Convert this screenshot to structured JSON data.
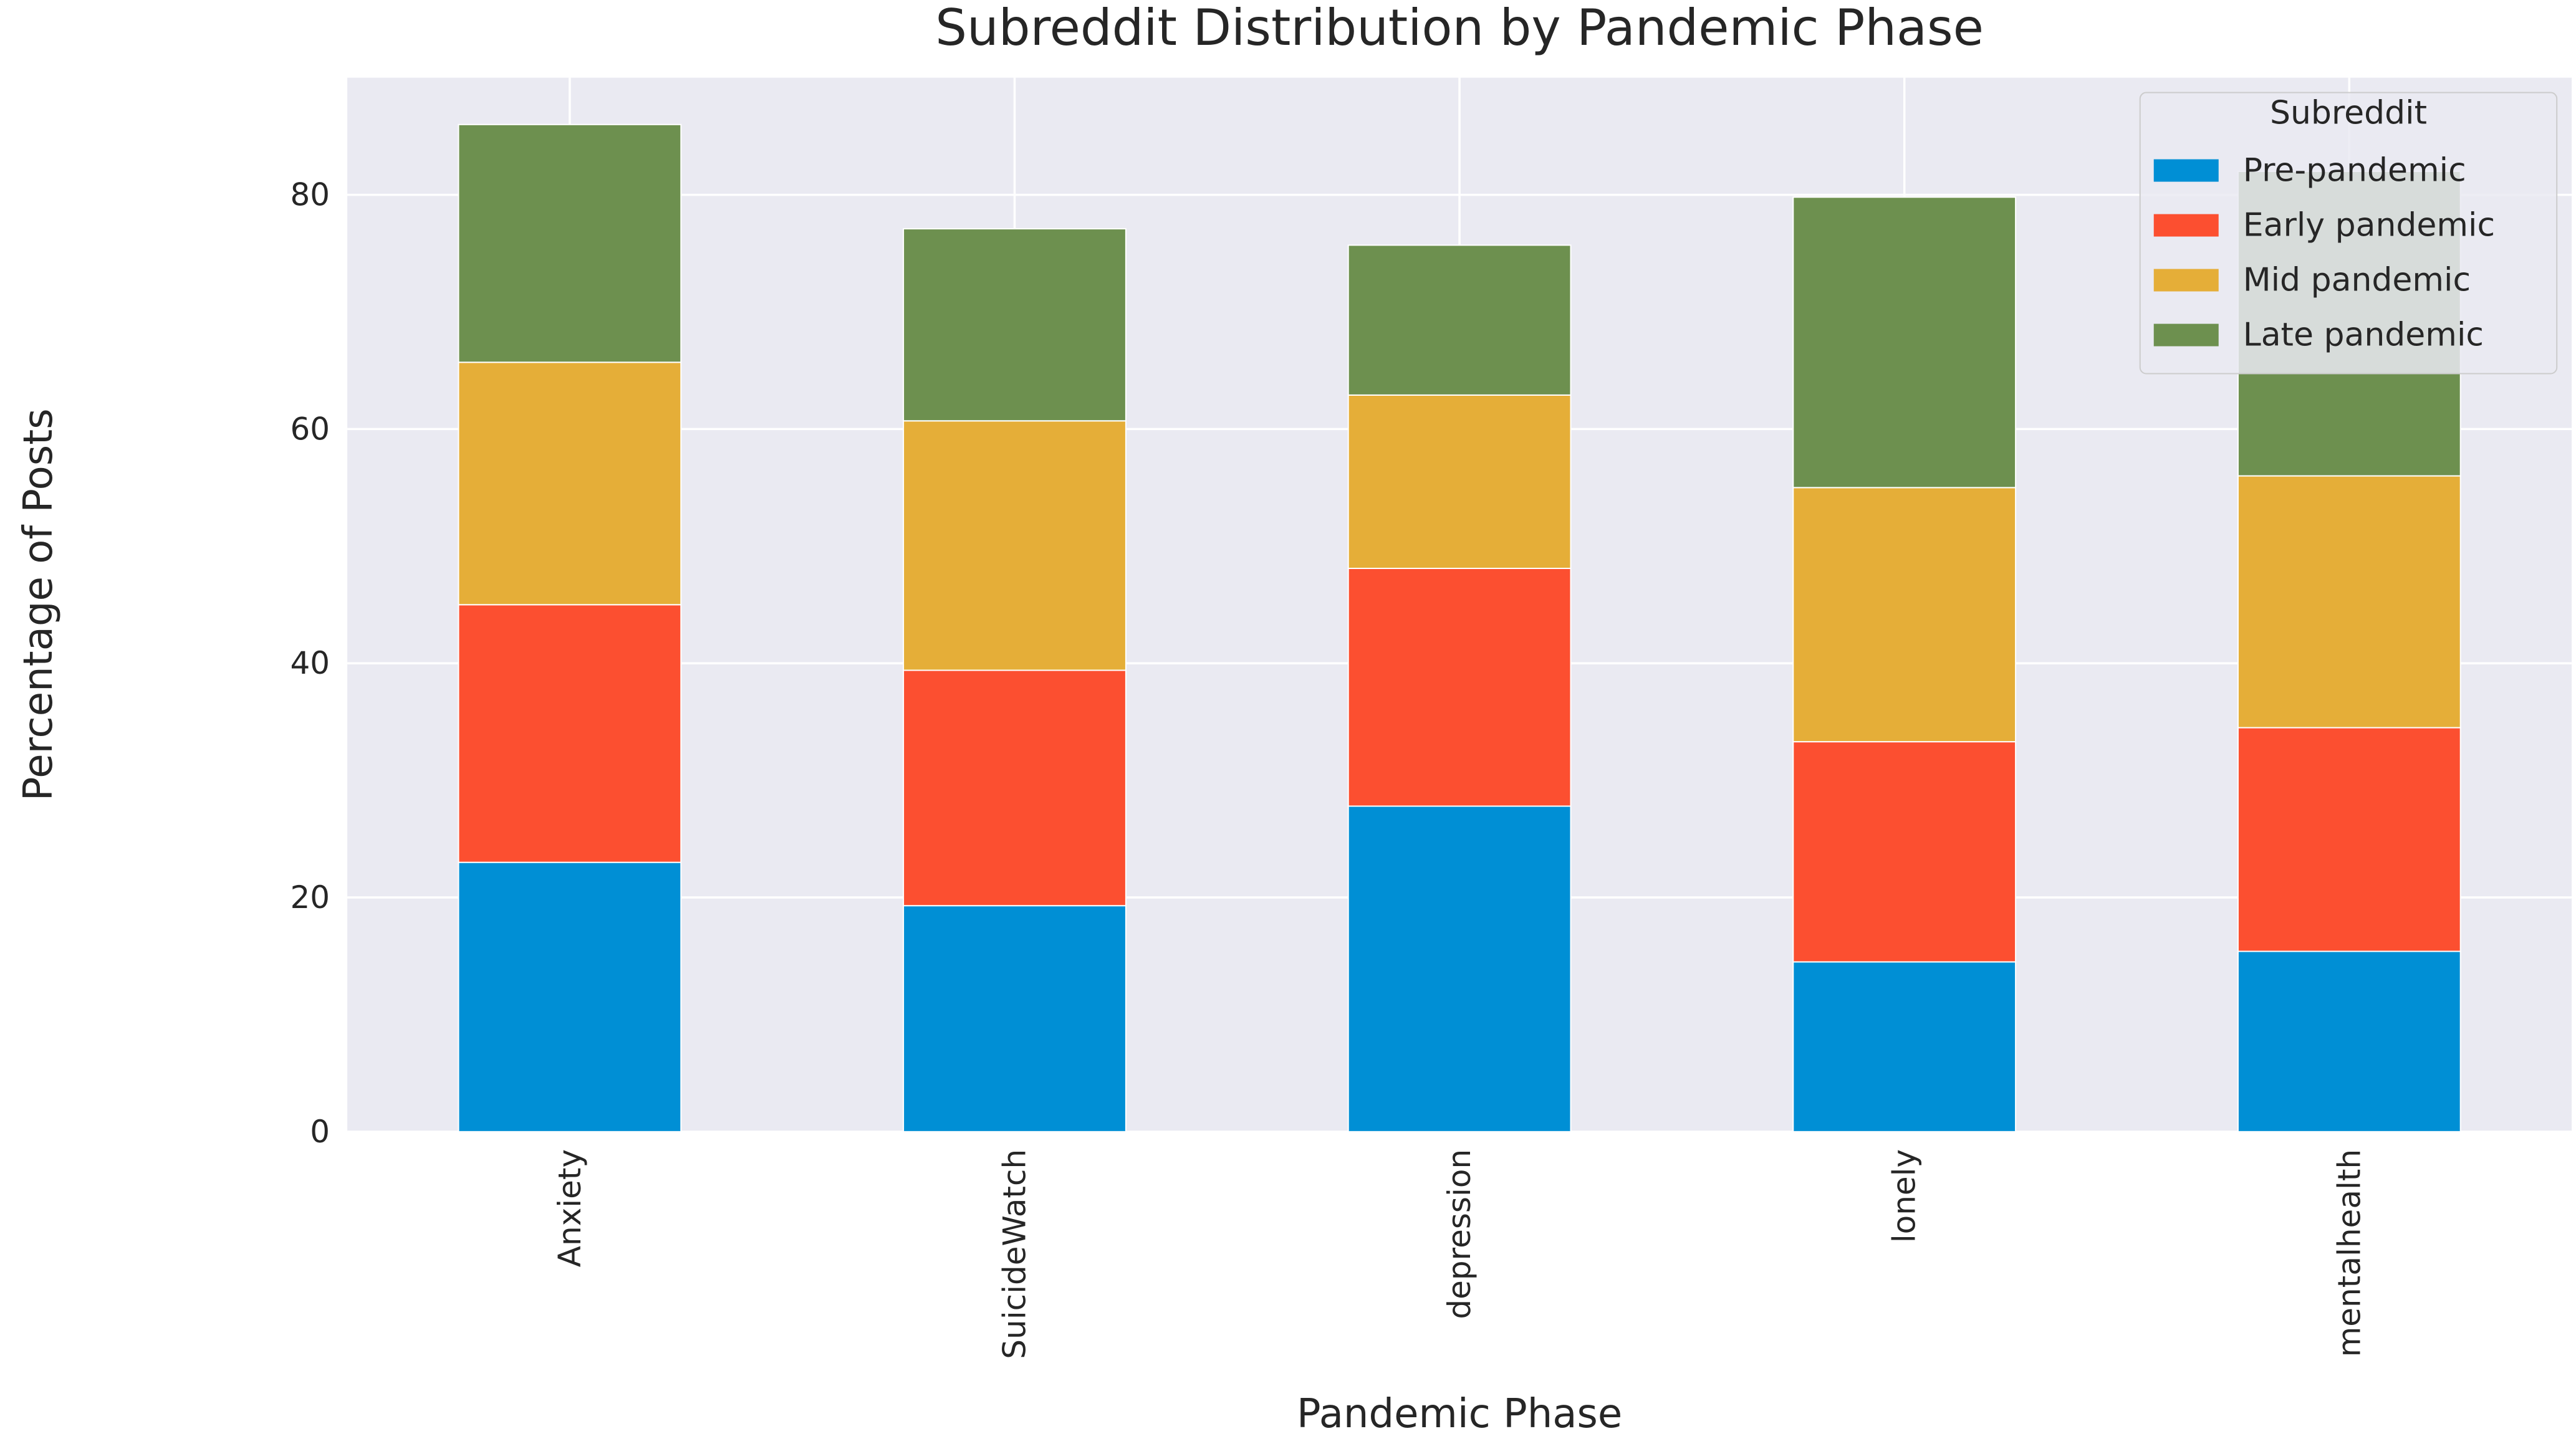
{
  "chart_data": {
    "type": "bar",
    "stacked": true,
    "title": "Subreddit Distribution by Pandemic Phase",
    "xlabel": "Pandemic Phase",
    "ylabel": "Percentage of Posts",
    "categories": [
      "Anxiety",
      "SuicideWatch",
      "depression",
      "lonely",
      "mentalhealth"
    ],
    "ylim": [
      0,
      90
    ],
    "yticks": [
      0,
      20,
      40,
      60,
      80
    ],
    "grid": true,
    "legend": {
      "title": "Subreddit",
      "position": "top-right"
    },
    "series": [
      {
        "name": "Pre-pandemic",
        "color": "#008fd5",
        "values": [
          23.0,
          19.3,
          27.8,
          14.5,
          15.4
        ]
      },
      {
        "name": "Early pandemic",
        "color": "#fc4f30",
        "values": [
          22.0,
          20.1,
          20.3,
          18.8,
          19.1
        ]
      },
      {
        "name": "Mid pandemic",
        "color": "#e5ae38",
        "values": [
          20.7,
          21.3,
          14.8,
          21.7,
          21.5
        ]
      },
      {
        "name": "Late pandemic",
        "color": "#6d904f",
        "values": [
          20.3,
          16.4,
          12.8,
          24.8,
          26.0
        ]
      }
    ]
  }
}
